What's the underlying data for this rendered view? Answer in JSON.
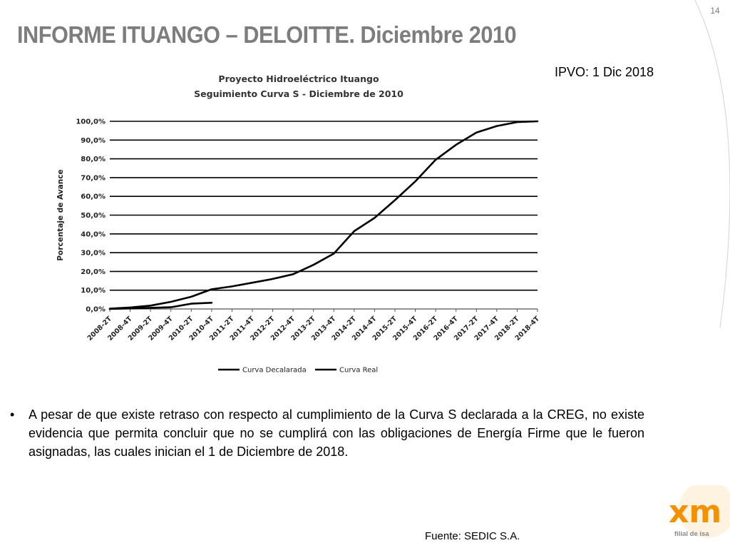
{
  "slide": {
    "number": "14",
    "title": "INFORME ITUANGO – DELOITTE. Diciembre 2010",
    "ipvo_note": "IPVO: 1 Dic 2018",
    "bullet_text": "A pesar de que existe retraso con respecto al cumplimiento de la Curva S declarada a la CREG, no existe evidencia que permita concluir que no se cumplirá con las obligaciones de Energía Firme que le fueron asignadas, las cuales inician el 1 de Diciembre de 2018.",
    "bullet_mark": "•",
    "source": "Fuente: SEDIC S.A.",
    "logo_text": "xm",
    "logo_sub": "filial de isa"
  },
  "colors": {
    "title": "#7d7d7d",
    "logo_orange": "#f39200",
    "logo_light": "#f7b462",
    "curve": "#000000"
  },
  "chart_data": {
    "type": "line",
    "title": "Proyecto Hidroeléctrico Ituango",
    "subtitle": "Seguimiento Curva S - Diciembre de 2010",
    "xlabel": "",
    "ylabel": "Porcentaje de Avance",
    "ylim": [
      0,
      100
    ],
    "y_ticks": [
      "0,0%",
      "10,0%",
      "20,0%",
      "30,0%",
      "40,0%",
      "50,0%",
      "60,0%",
      "70,0%",
      "80,0%",
      "90,0%",
      "100,0%"
    ],
    "categories": [
      "2008-2T",
      "2008-4T",
      "2009-2T",
      "2009-4T",
      "2010-2T",
      "2010-4T",
      "2011-2T",
      "2011-4T",
      "2012-2T",
      "2012-4T",
      "2013-2T",
      "2013-4T",
      "2014-2T",
      "2014-4T",
      "2015-2T",
      "2015-4T",
      "2016-2T",
      "2016-4T",
      "2017-2T",
      "2017-4T",
      "2018-2T",
      "2018-4T"
    ],
    "grid": true,
    "legend_position": "bottom",
    "series": [
      {
        "name": "Curva Decalarada",
        "x": [
          "2008-2T",
          "2008-4T",
          "2009-2T",
          "2009-4T",
          "2010-2T",
          "2010-4T",
          "2011-2T",
          "2011-4T",
          "2012-2T",
          "2012-4T",
          "2013-2T",
          "2013-4T",
          "2014-2T",
          "2014-4T",
          "2015-2T",
          "2015-4T",
          "2016-2T",
          "2016-4T",
          "2017-2T",
          "2017-4T",
          "2018-2T",
          "2018-4T"
        ],
        "values": [
          0.2,
          0.8,
          1.8,
          3.8,
          6.5,
          10.5,
          12.0,
          14.0,
          16.0,
          18.5,
          23.5,
          29.5,
          41.5,
          48.5,
          58.0,
          68.0,
          79.5,
          87.5,
          94.0,
          97.5,
          99.6,
          100.0
        ]
      },
      {
        "name": "Curva Real",
        "x": [
          "2008-2T",
          "2008-4T",
          "2009-2T",
          "2009-4T",
          "2010-2T",
          "2010-4T"
        ],
        "values": [
          0.0,
          0.3,
          0.6,
          0.9,
          2.8,
          3.3
        ]
      }
    ]
  }
}
